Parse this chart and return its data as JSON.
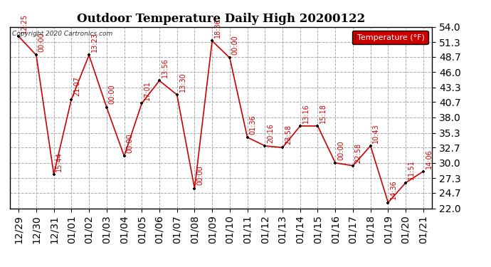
{
  "title": "Outdoor Temperature Daily High 20200122",
  "copyright_text": "Copyright 2020 Cartronics.com",
  "legend_label": "Temperature (°F)",
  "dates": [
    "12/29",
    "12/30",
    "12/31",
    "01/01",
    "01/02",
    "01/03",
    "01/04",
    "01/05",
    "01/06",
    "01/07",
    "01/08",
    "01/09",
    "01/10",
    "01/11",
    "01/12",
    "01/13",
    "01/14",
    "01/15",
    "01/16",
    "01/17",
    "01/18",
    "01/19",
    "01/20",
    "01/21"
  ],
  "temps": [
    52.3,
    49.0,
    28.0,
    41.2,
    49.0,
    39.8,
    31.2,
    40.5,
    44.5,
    42.0,
    25.5,
    51.5,
    48.5,
    34.5,
    33.0,
    32.7,
    36.5,
    36.5,
    30.0,
    29.5,
    33.0,
    23.0,
    26.5,
    28.5
  ],
  "annotations": [
    "12:25",
    "00:00",
    "15:44",
    "21:07",
    "13:23",
    "00:00",
    "00:00",
    "17:01",
    "13:56",
    "13:30",
    "00:00",
    "18:36",
    "00:00",
    "01:36",
    "20:16",
    "23:58",
    "13:16",
    "15:18",
    "00:00",
    "22:58",
    "10:43",
    "14:36",
    "11:51",
    "14:06"
  ],
  "ylim": [
    22.0,
    54.0
  ],
  "yticks": [
    22.0,
    24.7,
    27.3,
    30.0,
    32.7,
    35.3,
    38.0,
    40.7,
    43.3,
    46.0,
    48.7,
    51.3,
    54.0
  ],
  "line_color": "#cc0000",
  "marker_color": "#000000",
  "annotation_color": "#cc0000",
  "background_color": "#ffffff",
  "grid_color": "#aaaaaa",
  "legend_bg": "#cc0000",
  "legend_text_color": "#ffffff",
  "title_fontsize": 12,
  "annotation_fontsize": 7,
  "tick_fontsize": 10,
  "border_color": "#000000"
}
